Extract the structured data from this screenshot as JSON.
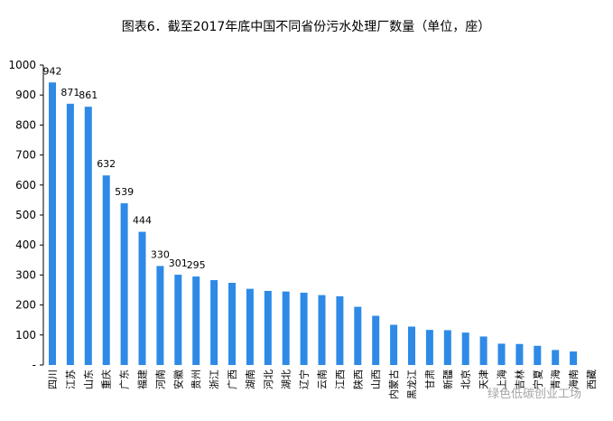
{
  "chart_data": {
    "type": "bar",
    "title": "图表6．截至2017年底中国不同省份污水处理厂数量（单位，座）",
    "xlabel": "",
    "ylabel": "",
    "ylim": [
      0,
      1000
    ],
    "yticks": [
      "1000",
      "900",
      "800",
      "700",
      "600",
      "500",
      "400",
      "300",
      "200",
      "100",
      "-"
    ],
    "grid": false,
    "legend": "none",
    "bar_color": "#2E8AE6",
    "categories": [
      "四川",
      "江苏",
      "山东",
      "重庆",
      "广东",
      "福建",
      "河南",
      "安徽",
      "贵州",
      "浙江",
      "广西",
      "湖南",
      "河北",
      "湖北",
      "辽宁",
      "云南",
      "江西",
      "陕西",
      "山西",
      "内蒙古",
      "黑龙江",
      "甘肃",
      "新疆",
      "北京",
      "天津",
      "上海",
      "吉林",
      "宁夏",
      "青海",
      "海南",
      "西藏"
    ],
    "values": [
      942,
      871,
      861,
      632,
      539,
      444,
      330,
      301,
      295,
      283,
      274,
      254,
      247,
      245,
      241,
      233,
      229,
      194,
      164,
      134,
      128,
      117,
      116,
      108,
      95,
      71,
      70,
      64,
      50,
      45,
      0
    ],
    "data_labels": [
      "942",
      "871",
      "861",
      "632",
      "539",
      "444",
      "330",
      "301",
      "295",
      "",
      "",
      "",
      "",
      "",
      "",
      "",
      "",
      "",
      "",
      "",
      "",
      "",
      "",
      "",
      "",
      "",
      "",
      "",
      "",
      "",
      ""
    ]
  },
  "watermark": "绿色低碳创业工场"
}
